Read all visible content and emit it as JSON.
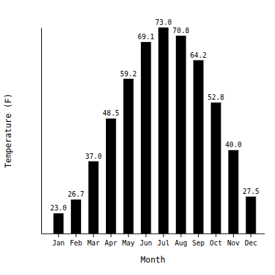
{
  "chart_data": {
    "type": "bar",
    "x_label": "Month",
    "y_label": "Temperature (F)",
    "categories": [
      "Jan",
      "Feb",
      "Mar",
      "Apr",
      "May",
      "Jun",
      "Jul",
      "Aug",
      "Sep",
      "Oct",
      "Nov",
      "Dec"
    ],
    "values": [
      23.0,
      26.7,
      37.0,
      48.5,
      59.2,
      69.1,
      73.0,
      70.8,
      64.2,
      52.8,
      40.0,
      27.5
    ],
    "value_labels": [
      "23.0",
      "26.7",
      "37.0",
      "48.5",
      "59.2",
      "69.1",
      "73.0",
      "70.8",
      "64.2",
      "52.8",
      "40.0",
      "27.5"
    ],
    "color": "#000000",
    "ylim": [
      17.5,
      73
    ],
    "grid": false,
    "data_labels": true,
    "tick_labels": "x"
  }
}
